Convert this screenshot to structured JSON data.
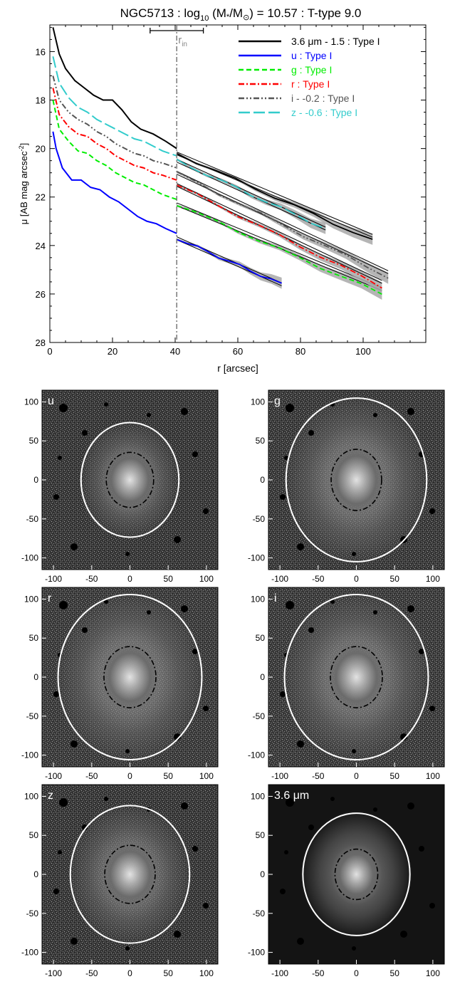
{
  "chart_data": [
    {
      "type": "line",
      "title": "NGC5713 : log",
      "title_sub": "10",
      "title_mid": " (M",
      "title_star": "*",
      "title_slash": "/M",
      "title_sun": "⊙",
      "title_end": ") = 10.57 : T-type 9.0",
      "xlabel": "r [arcsec]",
      "ylabel": "μ [AB mag arcsec",
      "ylabel_sup": "-2",
      "ylabel_end": "]",
      "xlim": [
        0,
        120
      ],
      "ylim": [
        28,
        14.9
      ],
      "y_inverted": true,
      "xticks": [
        "0",
        "20",
        "40",
        "60",
        "80",
        "100"
      ],
      "yticks": [
        "16",
        "18",
        "20",
        "22",
        "24",
        "26",
        "28"
      ],
      "rin": {
        "label": "r",
        "label_sub": "in",
        "x": 40.5,
        "err_lo": 32,
        "err_hi": 49
      },
      "legend": {
        "placement": "top-right"
      },
      "series": [
        {
          "name": "3.6 μm - 1.5 : Type I",
          "color": "#000000",
          "dash": "solid",
          "x": [
            1,
            3,
            5,
            8,
            11,
            14,
            17,
            20,
            23,
            26,
            29,
            33,
            37,
            40.5
          ],
          "y": [
            15.0,
            16.1,
            16.7,
            17.2,
            17.5,
            17.8,
            18.0,
            18.0,
            18.4,
            18.9,
            19.2,
            19.4,
            19.7,
            20.0
          ],
          "fit_x": [
            40.5,
            103
          ],
          "fit_y": [
            20.2,
            23.6
          ],
          "profile_end_x": 103,
          "profile_end_y": 23.8
        },
        {
          "name": "u : Type I",
          "color": "#0000ff",
          "dash": "solid",
          "x": [
            1,
            2,
            4,
            7,
            10,
            13,
            16,
            19,
            22,
            25,
            28,
            31,
            34,
            37,
            40.5
          ],
          "y": [
            19.3,
            20.0,
            20.8,
            21.3,
            21.3,
            21.6,
            21.7,
            22.0,
            22.2,
            22.5,
            22.8,
            23.0,
            23.1,
            23.3,
            23.5
          ],
          "fit_x": [
            40.5,
            74
          ],
          "fit_y": [
            23.7,
            25.6
          ],
          "profile_end_x": 74,
          "profile_end_y": 25.6
        },
        {
          "name": "g : Type I",
          "color": "#00ee00",
          "dash": "dash",
          "x": [
            1,
            3,
            6,
            9,
            12,
            15,
            18,
            21,
            24,
            27,
            30,
            33,
            36,
            40.5
          ],
          "y": [
            18.0,
            19.2,
            19.7,
            20.1,
            20.2,
            20.5,
            20.7,
            21.0,
            21.2,
            21.4,
            21.5,
            21.7,
            21.9,
            22.1
          ],
          "fit_x": [
            40.5,
            106
          ],
          "fit_y": [
            22.3,
            25.8
          ],
          "profile_end_x": 106,
          "profile_end_y": 26.0
        },
        {
          "name": "r : Type I",
          "color": "#ff0000",
          "dash": "dashdot",
          "x": [
            1,
            3,
            6,
            9,
            12,
            15,
            18,
            21,
            24,
            27,
            30,
            33,
            36,
            40.5
          ],
          "y": [
            17.5,
            18.6,
            19.1,
            19.4,
            19.5,
            19.8,
            20.0,
            20.3,
            20.5,
            20.7,
            20.8,
            21.0,
            21.1,
            21.3
          ],
          "fit_x": [
            40.5,
            106
          ],
          "fit_y": [
            21.5,
            25.5
          ],
          "profile_end_x": 106,
          "profile_end_y": 25.7
        },
        {
          "name": "i - -0.2 : Type I",
          "color": "#555555",
          "dash": "dashdotdot",
          "x": [
            1,
            3,
            6,
            9,
            12,
            15,
            18,
            21,
            24,
            27,
            30,
            33,
            36,
            40.5
          ],
          "y": [
            17.0,
            18.0,
            18.5,
            18.8,
            19.0,
            19.3,
            19.5,
            19.8,
            20.0,
            20.2,
            20.3,
            20.5,
            20.6,
            20.8
          ],
          "fit_x": [
            40.5,
            108
          ],
          "fit_y": [
            21.0,
            25.1
          ],
          "profile_end_x": 108,
          "profile_end_y": 25.3
        },
        {
          "name": "z - -0.6 : Type I",
          "color": "#33cccc",
          "dash": "longdash",
          "x": [
            1,
            3,
            6,
            9,
            12,
            15,
            18,
            21,
            24,
            27,
            30,
            33,
            36,
            40.5
          ],
          "y": [
            16.2,
            17.3,
            17.9,
            18.3,
            18.5,
            18.8,
            19.0,
            19.2,
            19.4,
            19.6,
            19.7,
            19.9,
            20.1,
            20.3
          ],
          "fit_x": [
            40.5,
            88
          ],
          "fit_y": [
            20.5,
            23.3
          ],
          "profile_end_x": 88,
          "profile_end_y": 23.3
        }
      ]
    },
    {
      "type": "image",
      "panels": [
        {
          "label": "u",
          "label_unit": "",
          "xticks": [
            "-100",
            "-50",
            "0",
            "50",
            "100"
          ],
          "yticks": [
            "100",
            "50",
            "0",
            "-50",
            "-100"
          ],
          "bg": "#383838",
          "outer_ellipse": {
            "rx": 64,
            "ry": 75
          },
          "inner_ellipse": {
            "rx": 31,
            "ry": 36
          }
        },
        {
          "label": "g",
          "label_unit": "",
          "xticks": [
            "-100",
            "-50",
            "0",
            "50",
            "100"
          ],
          "yticks": [
            "100",
            "50",
            "0",
            "-50",
            "-100"
          ],
          "bg": "#3a3a3a",
          "outer_ellipse": {
            "rx": 92,
            "ry": 107
          },
          "inner_ellipse": {
            "rx": 33,
            "ry": 40
          }
        },
        {
          "label": "r",
          "label_unit": "",
          "xticks": [
            "-100",
            "-50",
            "0",
            "50",
            "100"
          ],
          "yticks": [
            "100",
            "50",
            "0",
            "-50",
            "-100"
          ],
          "bg": "#3c3c3c",
          "outer_ellipse": {
            "rx": 94,
            "ry": 108
          },
          "inner_ellipse": {
            "rx": 34,
            "ry": 40
          }
        },
        {
          "label": "i",
          "label_unit": "",
          "xticks": [
            "-100",
            "-50",
            "0",
            "50",
            "100"
          ],
          "yticks": [
            "100",
            "50",
            "0",
            "-50",
            "-100"
          ],
          "bg": "#3c3c3c",
          "outer_ellipse": {
            "rx": 94,
            "ry": 108
          },
          "inner_ellipse": {
            "rx": 34,
            "ry": 40
          }
        },
        {
          "label": "z",
          "label_unit": "",
          "xticks": [
            "-100",
            "-50",
            "0",
            "50",
            "100"
          ],
          "yticks": [
            "100",
            "50",
            "0",
            "-50",
            "-100"
          ],
          "bg": "#383838",
          "outer_ellipse": {
            "rx": 78,
            "ry": 90
          },
          "inner_ellipse": {
            "rx": 33,
            "ry": 38
          }
        },
        {
          "label": "3.6 ",
          "label_unit": "μm",
          "xticks": [
            "-100",
            "-50",
            "0",
            "50",
            "100"
          ],
          "yticks": [
            "100",
            "50",
            "0",
            "-50",
            "-100"
          ],
          "bg": "#141414",
          "outer_ellipse": {
            "rx": 70,
            "ry": 80
          },
          "inner_ellipse": {
            "rx": 28,
            "ry": 33
          }
        }
      ]
    }
  ]
}
